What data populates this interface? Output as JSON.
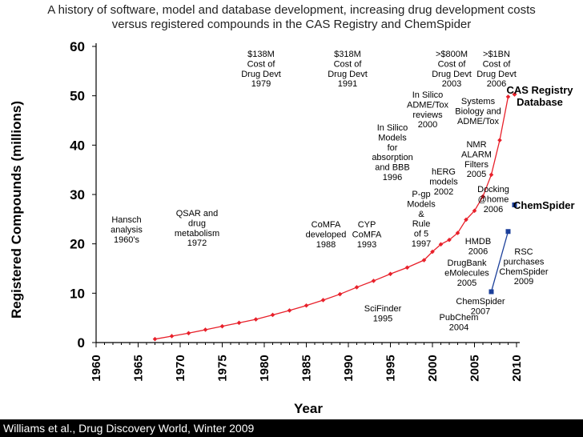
{
  "chart_data": {
    "type": "line",
    "title_lines": [
      "A history of software, model and database development, increasing drug development costs",
      "versus registered compounds in the CAS Registry and ChemSpider"
    ],
    "xlabel": "Year",
    "ylabel": "Registered Compounds (millions)",
    "xlim": [
      1960,
      2010
    ],
    "ylim": [
      0,
      60
    ],
    "x_ticks": [
      "1960",
      "1965",
      "1970",
      "1975",
      "1980",
      "1985",
      "1990",
      "1995",
      "2000",
      "2005",
      "2010"
    ],
    "y_ticks": [
      "0",
      "10",
      "20",
      "30",
      "40",
      "50",
      "60"
    ],
    "series": [
      {
        "name": "CAS Registry Database",
        "label_lines": [
          "CAS Registry",
          "Database"
        ],
        "color": "#e8202a",
        "x": [
          1967,
          1969,
          1971,
          1973,
          1975,
          1977,
          1979,
          1981,
          1983,
          1985,
          1987,
          1989,
          1991,
          1993,
          1995,
          1997,
          1999,
          2000,
          2001,
          2002,
          2003,
          2004,
          2005,
          2006,
          2007,
          2008,
          2009
        ],
        "y": [
          0.7,
          1.3,
          1.9,
          2.6,
          3.3,
          4.0,
          4.7,
          5.6,
          6.5,
          7.5,
          8.6,
          9.8,
          11.2,
          12.5,
          13.9,
          15.2,
          16.7,
          18.4,
          19.9,
          20.8,
          22.2,
          24.9,
          26.7,
          29.6,
          34.0,
          41.0,
          49.8
        ]
      },
      {
        "name": "ChemSpider",
        "label_lines": [
          "ChemSpider"
        ],
        "color": "#1b3f9a",
        "x": [
          2007,
          2009
        ],
        "y": [
          10.3,
          22.5
        ]
      }
    ],
    "annotations": [
      {
        "lines": [
          "Hansch",
          "analysis",
          "1960's"
        ]
      },
      {
        "lines": [
          "QSAR and",
          "drug",
          "metabolism",
          "1972"
        ]
      },
      {
        "lines": [
          "$138M",
          "Cost of",
          "Drug Devt",
          "1979"
        ]
      },
      {
        "lines": [
          "$318M",
          "Cost of",
          "Drug Devt",
          "1991"
        ]
      },
      {
        "lines": [
          "CoMFA",
          "developed",
          "1988"
        ]
      },
      {
        "lines": [
          "CYP",
          "CoMFA",
          "1993"
        ]
      },
      {
        "lines": [
          "In Silico",
          "Models",
          "for",
          "absorption",
          "and BBB",
          "1996"
        ]
      },
      {
        "lines": [
          "P-gp",
          "Models",
          "&",
          "Rule",
          "of 5",
          "1997"
        ]
      },
      {
        "lines": [
          "In Silico",
          "ADME/Tox",
          "reviews",
          "2000"
        ]
      },
      {
        "lines": [
          ">$800M",
          "Cost of",
          "Drug Devt",
          "2003"
        ]
      },
      {
        "lines": [
          ">$1BN",
          "Cost of",
          "Drug Devt",
          "2006"
        ]
      },
      {
        "lines": [
          "Systems",
          "Biology and",
          "ADME/Tox"
        ]
      },
      {
        "lines": [
          "NMR",
          "ALARM",
          "Filters",
          "2005"
        ]
      },
      {
        "lines": [
          "hERG",
          "models",
          "2002"
        ]
      },
      {
        "lines": [
          "Docking",
          "@home",
          "2006"
        ]
      },
      {
        "lines": [
          "HMDB",
          "2006"
        ]
      },
      {
        "lines": [
          "DrugBank",
          "eMolecules",
          "2005"
        ]
      },
      {
        "lines": [
          "RSC",
          "purchases",
          "ChemSpider",
          "2009"
        ]
      },
      {
        "lines": [
          "ChemSpider",
          "2007"
        ]
      },
      {
        "lines": [
          "SciFinder",
          "1995"
        ]
      },
      {
        "lines": [
          "PubChem",
          "2004"
        ]
      }
    ]
  },
  "footer": {
    "citation": "Williams et al., Drug Discovery World, Winter 2009"
  }
}
